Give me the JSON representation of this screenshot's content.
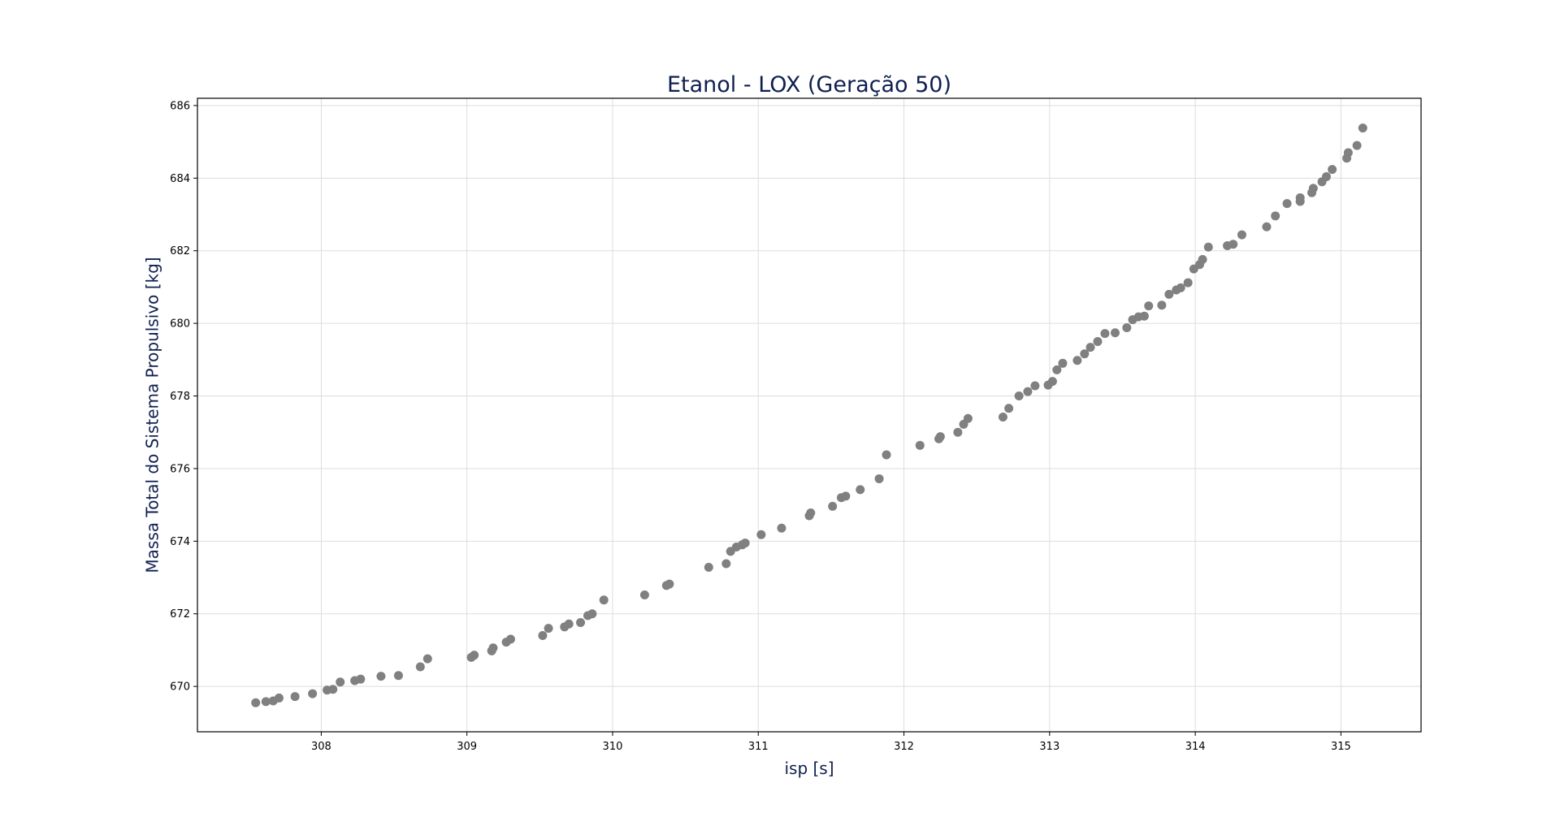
{
  "colors": {
    "title": "#0f1f4f",
    "axis_label": "#0f1f4f",
    "marker": "#808080",
    "grid": "#dddddd",
    "frame": "#000000"
  },
  "chart_data": {
    "type": "scatter",
    "title": "Etanol - LOX (Geração 50)",
    "xlabel": "isp [s]",
    "ylabel": "Massa Total do Sistema Propulsivo [kg]",
    "xlim": [
      307.15,
      315.55
    ],
    "ylim": [
      668.75,
      686.2
    ],
    "xticks": [
      308,
      309,
      310,
      311,
      312,
      313,
      314,
      315
    ],
    "yticks": [
      670,
      672,
      674,
      676,
      678,
      680,
      682,
      684,
      686
    ],
    "grid": true,
    "series": [
      {
        "marker": "circle",
        "points": [
          [
            307.55,
            669.55
          ],
          [
            307.62,
            669.58
          ],
          [
            307.67,
            669.6
          ],
          [
            307.71,
            669.68
          ],
          [
            307.82,
            669.72
          ],
          [
            307.94,
            669.8
          ],
          [
            308.04,
            669.9
          ],
          [
            308.08,
            669.92
          ],
          [
            308.13,
            670.12
          ],
          [
            308.23,
            670.16
          ],
          [
            308.27,
            670.2
          ],
          [
            308.41,
            670.28
          ],
          [
            308.53,
            670.3
          ],
          [
            308.68,
            670.54
          ],
          [
            308.73,
            670.76
          ],
          [
            309.03,
            670.8
          ],
          [
            309.05,
            670.86
          ],
          [
            309.17,
            670.98
          ],
          [
            309.18,
            671.06
          ],
          [
            309.27,
            671.22
          ],
          [
            309.3,
            671.3
          ],
          [
            309.52,
            671.4
          ],
          [
            309.56,
            671.6
          ],
          [
            309.67,
            671.64
          ],
          [
            309.7,
            671.72
          ],
          [
            309.78,
            671.76
          ],
          [
            309.83,
            671.95
          ],
          [
            309.86,
            672.0
          ],
          [
            309.94,
            672.38
          ],
          [
            310.22,
            672.52
          ],
          [
            310.37,
            672.78
          ],
          [
            310.39,
            672.82
          ],
          [
            310.66,
            673.28
          ],
          [
            310.78,
            673.38
          ],
          [
            310.81,
            673.72
          ],
          [
            310.85,
            673.84
          ],
          [
            310.89,
            673.9
          ],
          [
            310.91,
            673.95
          ],
          [
            311.02,
            674.18
          ],
          [
            311.16,
            674.36
          ],
          [
            311.35,
            674.7
          ],
          [
            311.36,
            674.78
          ],
          [
            311.51,
            674.96
          ],
          [
            311.57,
            675.2
          ],
          [
            311.6,
            675.24
          ],
          [
            311.7,
            675.42
          ],
          [
            311.83,
            675.72
          ],
          [
            311.88,
            676.38
          ],
          [
            312.11,
            676.64
          ],
          [
            312.24,
            676.82
          ],
          [
            312.25,
            676.88
          ],
          [
            312.37,
            677.0
          ],
          [
            312.41,
            677.22
          ],
          [
            312.44,
            677.38
          ],
          [
            312.68,
            677.42
          ],
          [
            312.72,
            677.66
          ],
          [
            312.79,
            678.0
          ],
          [
            312.85,
            678.12
          ],
          [
            312.9,
            678.28
          ],
          [
            312.99,
            678.3
          ],
          [
            313.02,
            678.4
          ],
          [
            313.05,
            678.72
          ],
          [
            313.09,
            678.9
          ],
          [
            313.19,
            678.98
          ],
          [
            313.24,
            679.16
          ],
          [
            313.28,
            679.34
          ],
          [
            313.33,
            679.5
          ],
          [
            313.38,
            679.72
          ],
          [
            313.45,
            679.74
          ],
          [
            313.53,
            679.88
          ],
          [
            313.57,
            680.1
          ],
          [
            313.61,
            680.18
          ],
          [
            313.65,
            680.2
          ],
          [
            313.68,
            680.48
          ],
          [
            313.77,
            680.5
          ],
          [
            313.82,
            680.8
          ],
          [
            313.87,
            680.92
          ],
          [
            313.9,
            680.98
          ],
          [
            313.95,
            681.12
          ],
          [
            313.99,
            681.5
          ],
          [
            314.03,
            681.62
          ],
          [
            314.05,
            681.76
          ],
          [
            314.09,
            682.1
          ],
          [
            314.22,
            682.14
          ],
          [
            314.26,
            682.18
          ],
          [
            314.32,
            682.44
          ],
          [
            314.49,
            682.66
          ],
          [
            314.55,
            682.96
          ],
          [
            314.63,
            683.3
          ],
          [
            314.72,
            683.36
          ],
          [
            314.72,
            683.46
          ],
          [
            314.8,
            683.6
          ],
          [
            314.81,
            683.72
          ],
          [
            314.87,
            683.9
          ],
          [
            314.9,
            684.04
          ],
          [
            314.94,
            684.24
          ],
          [
            315.04,
            684.55
          ],
          [
            315.05,
            684.7
          ],
          [
            315.11,
            684.9
          ],
          [
            315.15,
            685.38
          ]
        ]
      }
    ]
  }
}
